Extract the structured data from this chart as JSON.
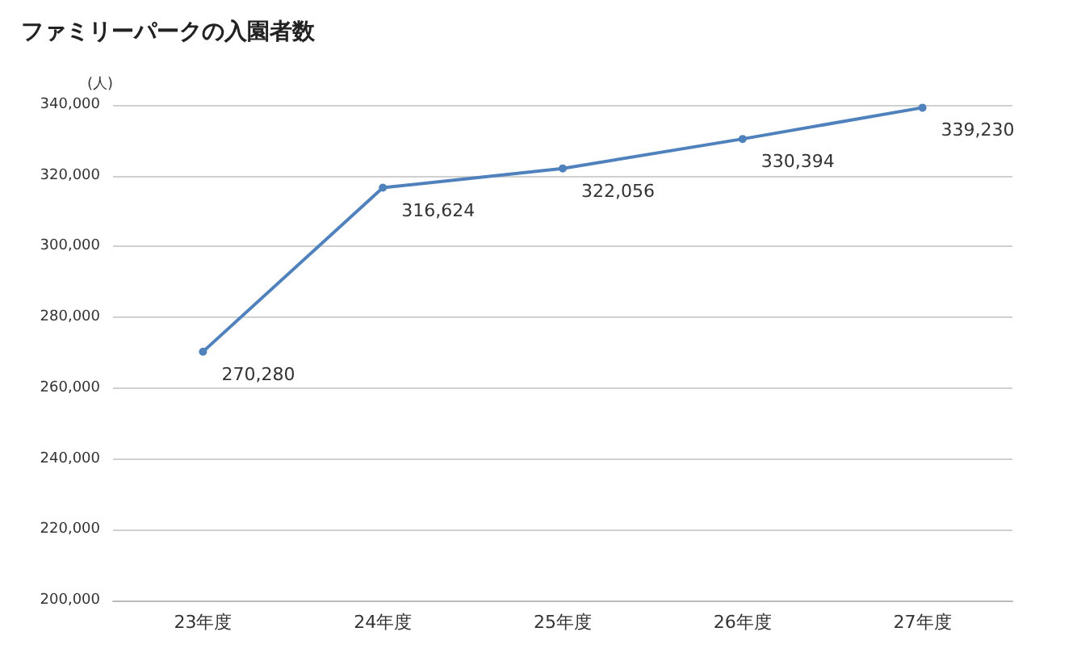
{
  "chart_data": {
    "type": "line",
    "title": "ファミリーパークの入園者数",
    "ylabel": "(人)",
    "categories": [
      "23年度",
      "24年度",
      "25年度",
      "26年度",
      "27年度"
    ],
    "series": [
      {
        "color": "#4f81bd",
        "values": [
          270280,
          316624,
          322056,
          330394,
          339230
        ],
        "value_labels": [
          "270,280",
          "316,624",
          "322,056",
          "330,394",
          "339,230"
        ]
      }
    ],
    "ylim": [
      200000,
      340000
    ],
    "yticks": [
      {
        "value": 200000,
        "label": "200,000"
      },
      {
        "value": 220000,
        "label": "220,000"
      },
      {
        "value": 240000,
        "label": "240,000"
      },
      {
        "value": 260000,
        "label": "260,000"
      },
      {
        "value": 280000,
        "label": "280,000"
      },
      {
        "value": 300000,
        "label": "300,000"
      },
      {
        "value": 320000,
        "label": "320,000"
      },
      {
        "value": 340000,
        "label": "340,000"
      }
    ],
    "grid": "y",
    "marker": "circle",
    "line_style": "solid"
  }
}
